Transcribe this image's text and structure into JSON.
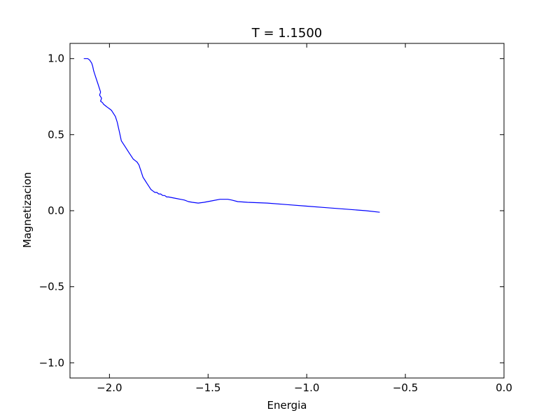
{
  "chart_data": {
    "type": "line",
    "title": "T = 1.1500",
    "xlabel": "Energia",
    "ylabel": "Magnetizacion",
    "xlim": [
      -2.2,
      0.0
    ],
    "ylim": [
      -1.1,
      1.1
    ],
    "xticks": [
      -2.0,
      -1.5,
      -1.0,
      -0.5,
      0.0
    ],
    "xtick_labels": [
      "−2.0",
      "−1.5",
      "−1.0",
      "−0.5",
      "0.0"
    ],
    "yticks": [
      1.0,
      0.5,
      0.0,
      -0.5,
      -1.0
    ],
    "ytick_labels": [
      "1.0",
      "0.5",
      "0.0",
      "−0.5",
      "−1.0"
    ],
    "grid": false,
    "line_color": "#0000ff",
    "series": [
      {
        "x": [
          -2.13,
          -2.11,
          -2.1,
          -2.09,
          -2.085,
          -2.08,
          -2.075,
          -2.07,
          -2.065,
          -2.06,
          -2.055,
          -2.05,
          -2.045,
          -2.05,
          -2.04,
          -2.045,
          -2.035,
          -2.03,
          -2.02,
          -2.01,
          -2.0,
          -1.99,
          -1.98,
          -1.97,
          -1.965,
          -1.96,
          -1.955,
          -1.95,
          -1.945,
          -1.94,
          -1.93,
          -1.92,
          -1.91,
          -1.9,
          -1.89,
          -1.88,
          -1.87,
          -1.86,
          -1.85,
          -1.845,
          -1.84,
          -1.835,
          -1.83,
          -1.82,
          -1.81,
          -1.8,
          -1.79,
          -1.78,
          -1.77,
          -1.76,
          -1.75,
          -1.74,
          -1.73,
          -1.72,
          -1.71,
          -1.7,
          -1.68,
          -1.66,
          -1.64,
          -1.62,
          -1.6,
          -1.58,
          -1.55,
          -1.52,
          -1.48,
          -1.44,
          -1.4,
          -1.38,
          -1.35,
          -1.3,
          -1.2,
          -1.1,
          -1.0,
          -0.9,
          -0.8,
          -0.7,
          -0.63
        ],
        "y": [
          1.0,
          1.0,
          0.99,
          0.97,
          0.95,
          0.92,
          0.9,
          0.88,
          0.86,
          0.84,
          0.82,
          0.8,
          0.78,
          0.76,
          0.74,
          0.72,
          0.71,
          0.7,
          0.69,
          0.68,
          0.67,
          0.66,
          0.64,
          0.62,
          0.6,
          0.58,
          0.55,
          0.52,
          0.49,
          0.46,
          0.44,
          0.42,
          0.4,
          0.38,
          0.36,
          0.34,
          0.33,
          0.32,
          0.3,
          0.28,
          0.26,
          0.24,
          0.22,
          0.2,
          0.18,
          0.16,
          0.14,
          0.13,
          0.12,
          0.12,
          0.11,
          0.11,
          0.1,
          0.1,
          0.09,
          0.09,
          0.085,
          0.08,
          0.075,
          0.07,
          0.06,
          0.055,
          0.05,
          0.055,
          0.065,
          0.075,
          0.075,
          0.07,
          0.06,
          0.055,
          0.05,
          0.04,
          0.03,
          0.02,
          0.01,
          0.0,
          -0.01
        ]
      }
    ]
  }
}
